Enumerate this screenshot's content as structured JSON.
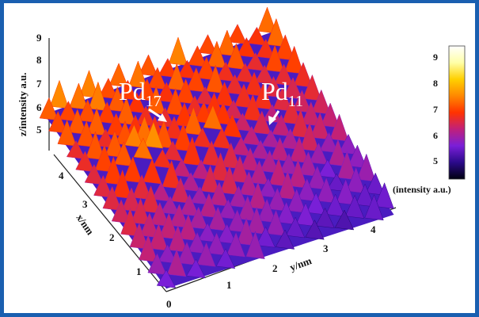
{
  "chart_data": {
    "type": "surface3d",
    "title": "",
    "zlabel": "z/intensity a.u.",
    "xlabel": "x/nm",
    "ylabel": "y/nm",
    "z_ticks": [
      "5",
      "6",
      "7",
      "8",
      "9"
    ],
    "x_ticks": [
      "0",
      "1",
      "2",
      "3",
      "4"
    ],
    "y_ticks": [
      "1",
      "2",
      "3",
      "4"
    ],
    "x_range": [
      0,
      4.6
    ],
    "y_range": [
      0,
      4.6
    ],
    "z_range": [
      4.5,
      9.5
    ],
    "lattice_periods": {
      "x": 0.34,
      "y": 0.3
    },
    "annotations": [
      {
        "base": "Pd",
        "sub": "17",
        "x": 2.7,
        "y": 1.0,
        "z": 7.2
      },
      {
        "base": "Pd",
        "sub": "11",
        "x": 2.7,
        "y": 2.4,
        "z": 6.9
      }
    ],
    "colorbar": {
      "label": "(intensity a.u.)",
      "ticks": [
        "5",
        "6",
        "7",
        "8",
        "9"
      ],
      "range": [
        4.5,
        9.5
      ],
      "colors": [
        "#000010",
        "#2b0a8a",
        "#7a1fd8",
        "#c0207a",
        "#ff3300",
        "#ff8800",
        "#ffd000",
        "#ffffa8",
        "#ffffff"
      ]
    }
  }
}
